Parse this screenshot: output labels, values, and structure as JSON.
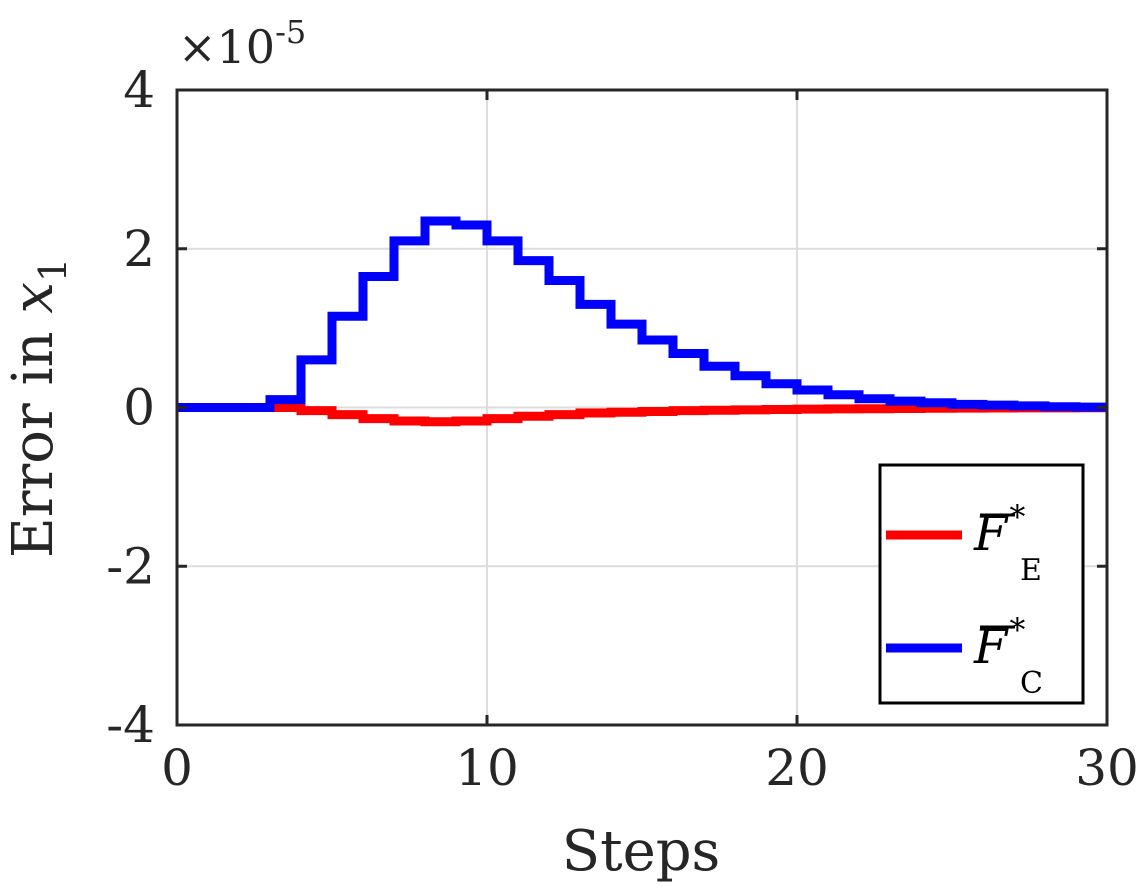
{
  "chart_data": {
    "type": "line",
    "style": "stairs",
    "xlabel": "Steps",
    "ylabel_prefix": "Error in ",
    "ylabel_symbol": "x",
    "ylabel_subscript": "1",
    "y_exponent_prefix": "×10",
    "y_exponent": "-5",
    "xlim": [
      0,
      30
    ],
    "ylim": [
      -4,
      4
    ],
    "xticks": [
      0,
      10,
      20,
      30
    ],
    "yticks": [
      -4,
      -2,
      0,
      2,
      4
    ],
    "xtick_labels": [
      "0",
      "10",
      "20",
      "30"
    ],
    "ytick_labels": [
      "-4",
      "-2",
      "0",
      "2",
      "4"
    ],
    "grid": true,
    "legend_position": "bottom-right",
    "x": [
      0,
      1,
      2,
      3,
      4,
      5,
      6,
      7,
      8,
      9,
      10,
      11,
      12,
      13,
      14,
      15,
      16,
      17,
      18,
      19,
      20,
      21,
      22,
      23,
      24,
      25,
      26,
      27,
      28,
      29,
      30
    ],
    "series": [
      {
        "name_base": "F",
        "name_sup": "*",
        "name_sub": "E",
        "color": "#ff0000",
        "start": 3,
        "values": [
          0,
          0,
          0,
          0,
          -0.04,
          -0.09,
          -0.14,
          -0.17,
          -0.18,
          -0.17,
          -0.14,
          -0.11,
          -0.09,
          -0.07,
          -0.06,
          -0.05,
          -0.04,
          -0.035,
          -0.03,
          -0.025,
          -0.02,
          -0.018,
          -0.015,
          -0.012,
          -0.01,
          -0.008,
          -0.006,
          -0.005,
          -0.004,
          -0.003,
          -0.003
        ]
      },
      {
        "name_base": "F",
        "name_sup": "*",
        "name_sub": "C",
        "color": "#0000ff",
        "start": 0,
        "values": [
          0,
          0,
          0,
          0.1,
          0.6,
          1.15,
          1.65,
          2.1,
          2.35,
          2.3,
          2.1,
          1.85,
          1.6,
          1.3,
          1.05,
          0.85,
          0.68,
          0.52,
          0.4,
          0.3,
          0.22,
          0.16,
          0.11,
          0.08,
          0.06,
          0.04,
          0.03,
          0.02,
          0.01,
          0.005,
          0.005
        ]
      }
    ]
  }
}
